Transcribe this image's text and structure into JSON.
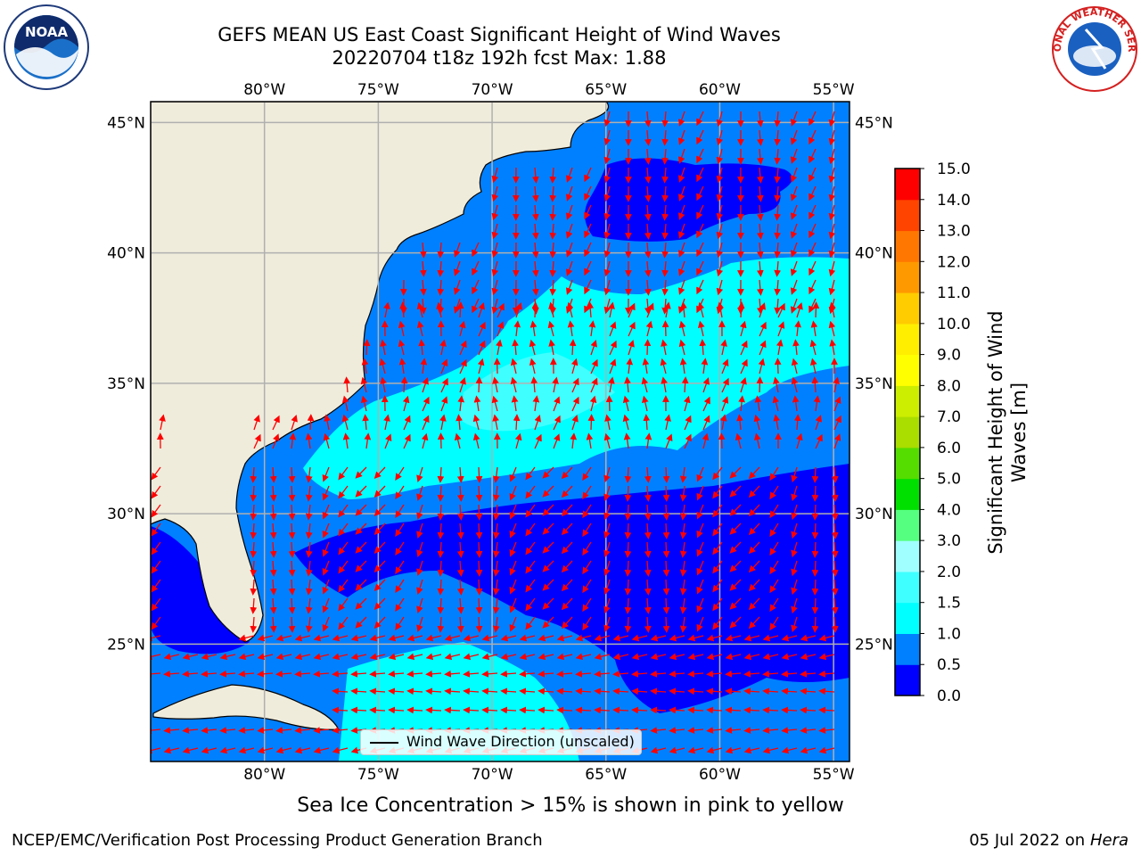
{
  "header": {
    "title_line1": "GEFS MEAN US East Coast Significant Height of Wind Waves",
    "title_line2": "20220704 t18z 192h fcst   Max: 1.88"
  },
  "logos": {
    "noaa_text": "NOAA",
    "nws_text": "NATIONAL WEATHER SERVICE"
  },
  "map": {
    "lon_labels": [
      "80°W",
      "75°W",
      "70°W",
      "65°W",
      "60°W",
      "55°W"
    ],
    "lat_labels": [
      "45°N",
      "40°N",
      "35°N",
      "30°N",
      "25°N"
    ],
    "lon_values": [
      -80,
      -75,
      -70,
      -65,
      -60,
      -55
    ],
    "lat_values": [
      45,
      40,
      35,
      30,
      25
    ],
    "lon_range": [
      -85,
      -54.3
    ],
    "lat_range": [
      20.5,
      45.8
    ],
    "legend_label": "Wind Wave Direction (unscaled)",
    "arrow_color": "#ff0000",
    "land_color": "#efecdc",
    "grid_color": "#b0b0b0"
  },
  "colorbar": {
    "title": "Significant Height of Wind Waves [m]",
    "ticks": [
      "0.0",
      "0.5",
      "1.0",
      "1.5",
      "2.0",
      "3.0",
      "4.0",
      "5.0",
      "6.0",
      "7.0",
      "8.0",
      "9.0",
      "10.0",
      "11.0",
      "12.0",
      "13.0",
      "14.0",
      "15.0"
    ],
    "colors": [
      "#0000ff",
      "#0080ff",
      "#00ffff",
      "#40ffff",
      "#a0ffff",
      "#55ff80",
      "#00e000",
      "#55dd00",
      "#aadd00",
      "#ccee00",
      "#ffff00",
      "#ffee00",
      "#ffcc00",
      "#ff9900",
      "#ff7700",
      "#ff4400",
      "#ff0000"
    ]
  },
  "footer": {
    "subtitle": "Sea Ice Concentration > 15% is shown in pink to yellow",
    "left": "NCEP/EMC/Verification Post Processing Product Generation Branch",
    "right_date": "05 Jul 2022 on",
    "right_host": "Hera"
  }
}
